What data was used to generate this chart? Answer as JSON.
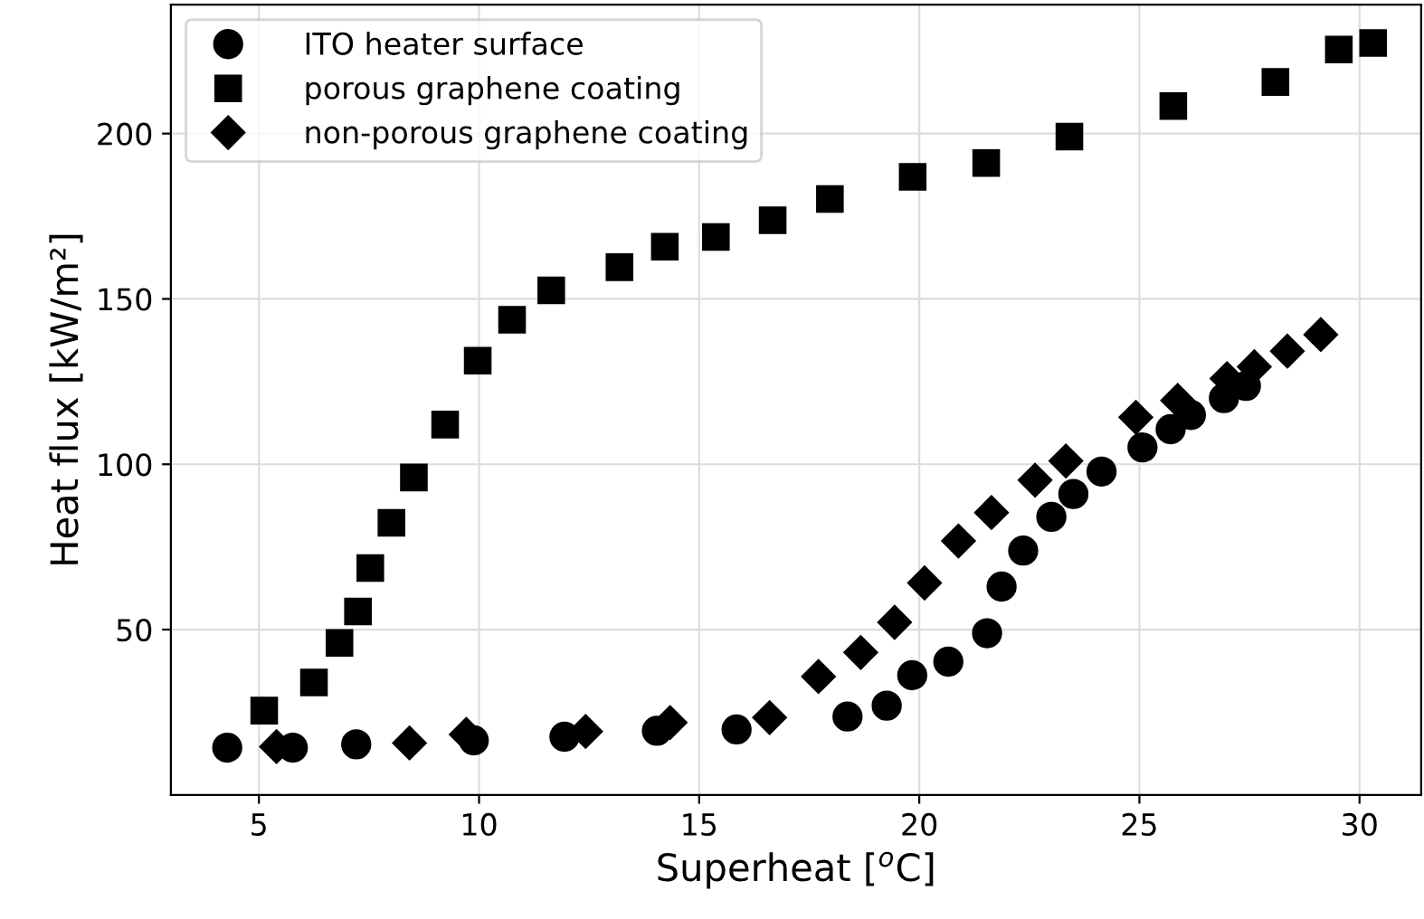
{
  "chart_data": {
    "type": "scatter",
    "xlabel": "Superheat [$^{o}$C]",
    "ylabel": "Heat flux [kW/m²]",
    "xlim": [
      3.0,
      31.4
    ],
    "ylim": [
      0,
      239
    ],
    "xticks": [
      5,
      10,
      15,
      20,
      25,
      30
    ],
    "yticks": [
      50,
      100,
      150,
      200
    ],
    "grid": true,
    "legend": "top left",
    "series": [
      {
        "name": "ITO heater surface",
        "color": "#000000",
        "marker": "circle",
        "x": [
          4.28,
          5.77,
          7.21,
          8.4,
          9.88,
          11.94,
          14.04,
          15.85,
          18.37,
          19.26,
          19.84,
          20.66,
          21.54,
          21.87,
          22.36,
          23.0,
          23.5,
          24.14,
          25.07,
          25.71,
          26.17,
          26.92,
          27.42
        ],
        "values": [
          14.3,
          14.3,
          15.3,
          null,
          16.5,
          17.6,
          19.4,
          19.8,
          23.7,
          27.0,
          36.2,
          40.3,
          48.9,
          63.0,
          73.9,
          84.1,
          91.0,
          97.8,
          105.1,
          110.6,
          114.9,
          120.0,
          123.7
        ]
      },
      {
        "name": "porous graphene coating",
        "color": "#000000",
        "marker": "square",
        "x": [
          5.12,
          6.25,
          6.83,
          7.25,
          7.53,
          8.01,
          8.52,
          9.23,
          9.97,
          10.75,
          11.64,
          13.19,
          14.22,
          15.38,
          16.67,
          17.97,
          19.85,
          21.52,
          23.41,
          25.77,
          28.09,
          29.53,
          30.31
        ],
        "values": [
          25.5,
          34.0,
          46.0,
          55.5,
          68.6,
          82.3,
          96.0,
          112.0,
          131.3,
          143.7,
          152.6,
          159.6,
          165.8,
          168.7,
          173.8,
          180.2,
          186.9,
          191.1,
          199.1,
          208.3,
          215.6,
          225.4,
          227.4
        ]
      },
      {
        "name": "non-porous graphene coating",
        "color": "#000000",
        "marker": "diamond",
        "x": [
          5.4,
          8.42,
          9.71,
          12.42,
          14.34,
          16.6,
          17.71,
          18.67,
          19.44,
          20.12,
          20.89,
          21.64,
          22.63,
          23.33,
          24.92,
          25.87,
          26.99,
          27.61,
          28.36,
          29.12
        ],
        "values": [
          14.6,
          15.7,
          18.3,
          19.2,
          21.9,
          23.4,
          35.8,
          43.1,
          52.2,
          64.1,
          76.8,
          85.4,
          95.2,
          101.0,
          114.2,
          119.3,
          125.9,
          129.5,
          134.2,
          139.2
        ]
      }
    ]
  }
}
